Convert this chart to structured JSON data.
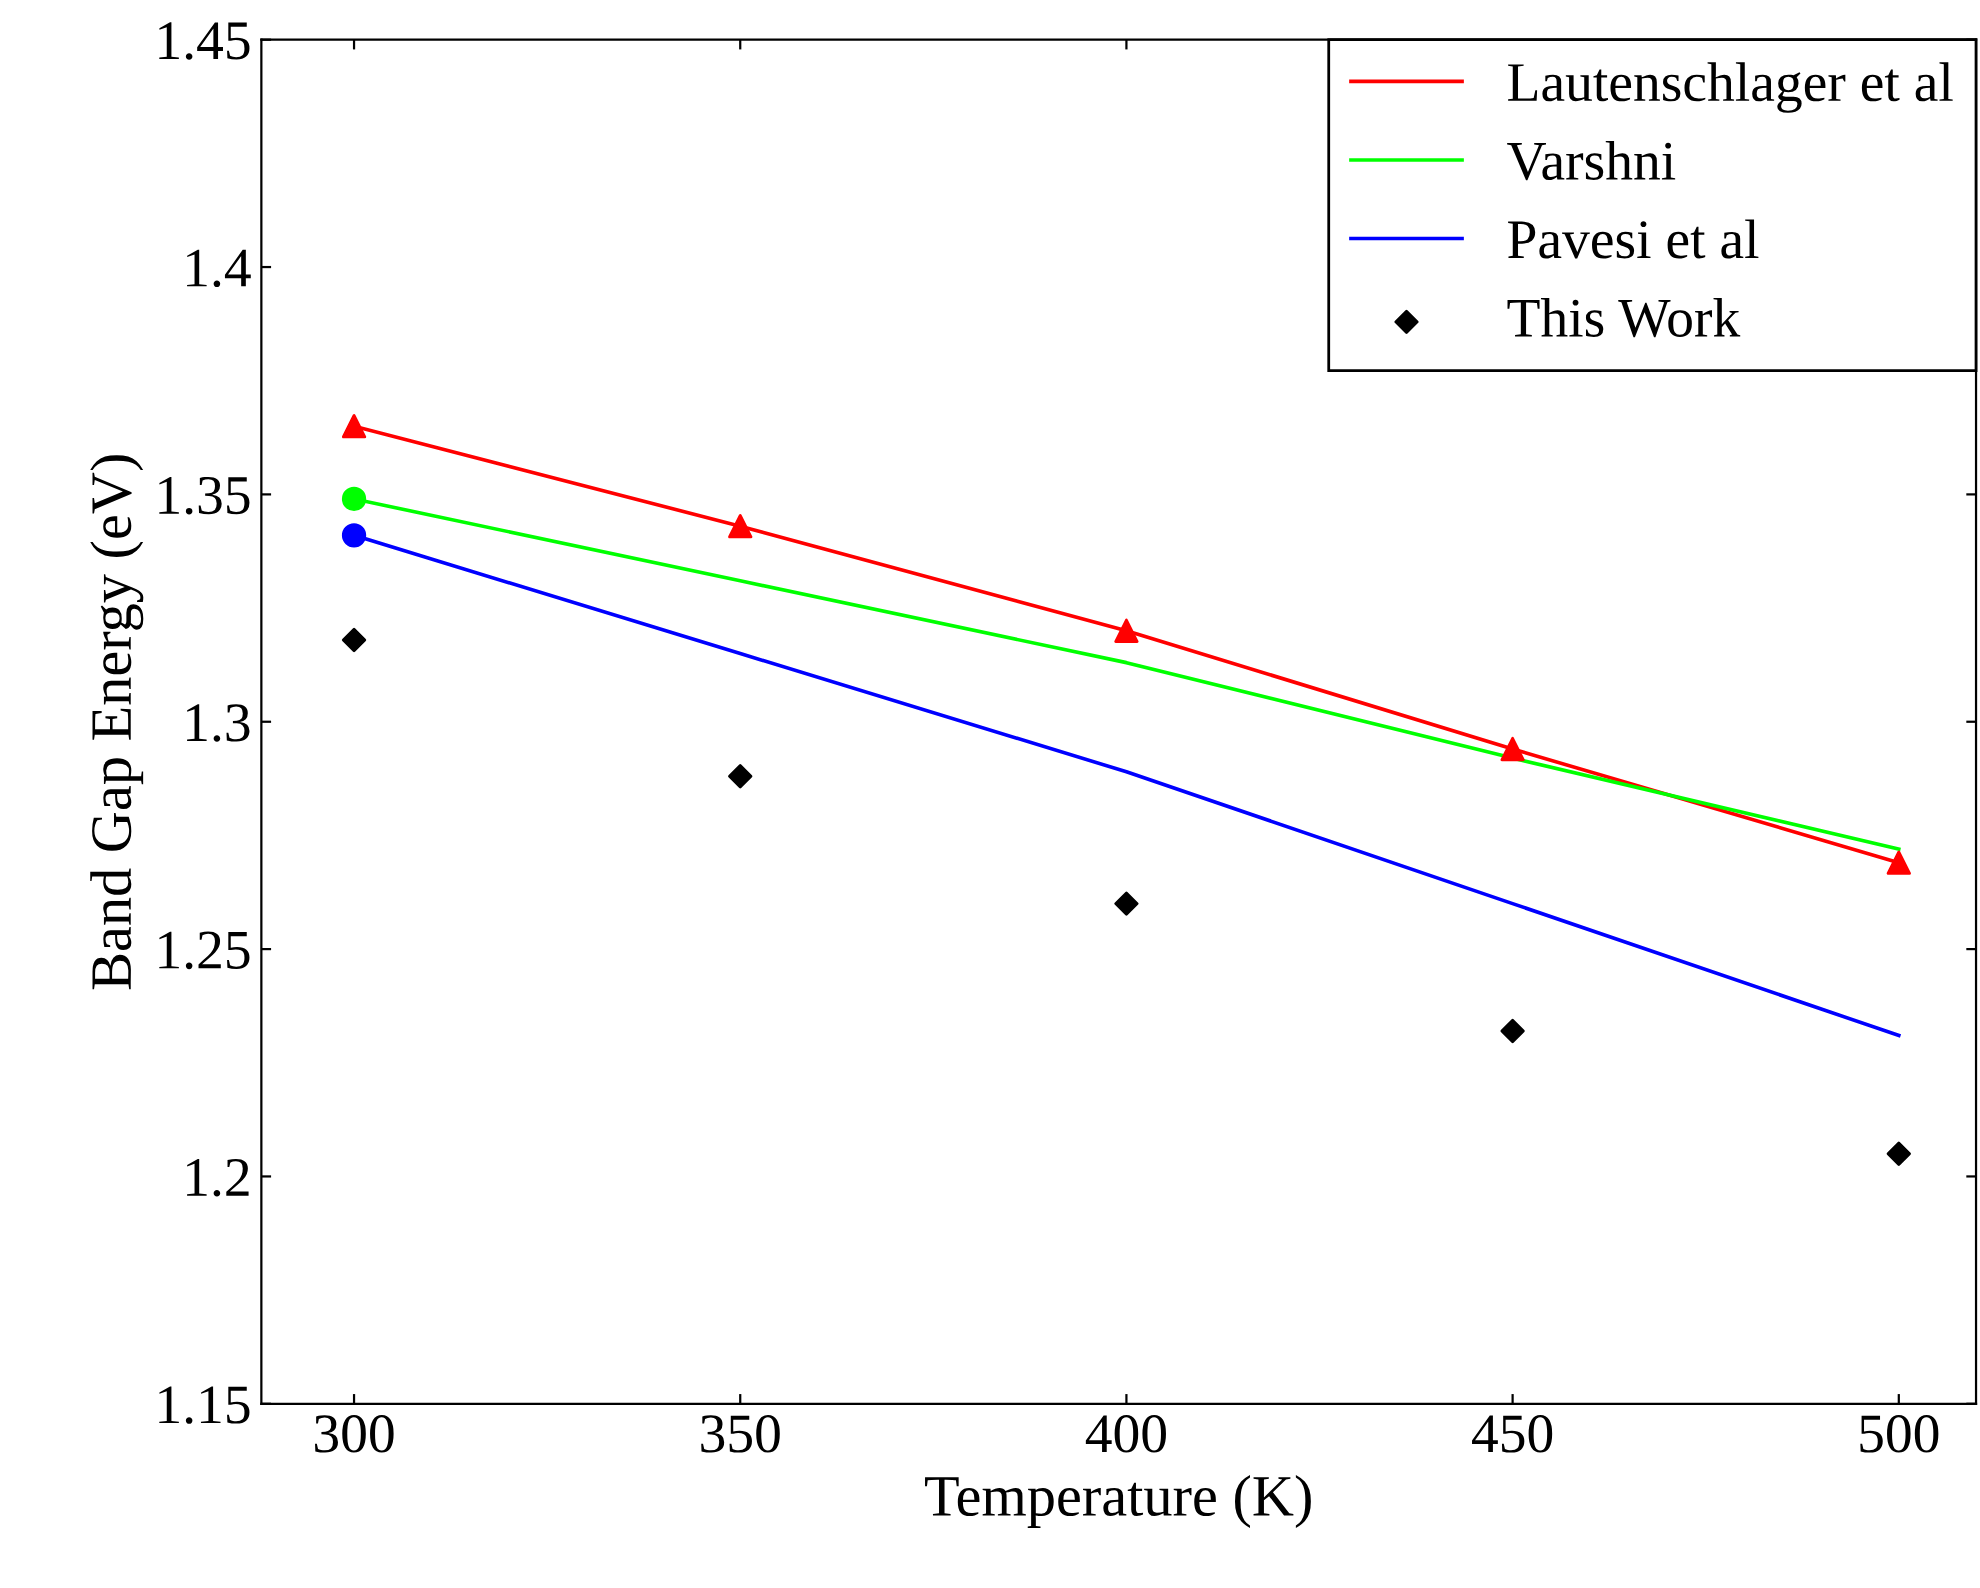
{
  "chart_data": {
    "type": "line",
    "xlabel": "Temperature (K)",
    "ylabel": "Band Gap Energy (eV)",
    "xlim": [
      288,
      510
    ],
    "ylim": [
      1.15,
      1.45
    ],
    "xticks": [
      300,
      350,
      400,
      450,
      500
    ],
    "yticks": [
      1.15,
      1.2,
      1.25,
      1.3,
      1.35,
      1.4,
      1.45
    ],
    "grid": false,
    "legend": "top right",
    "series": [
      {
        "name": "Lautenschlager et al",
        "color": "#ff0000",
        "x": [
          300,
          350,
          400,
          450,
          500
        ],
        "values": [
          1.365,
          1.343,
          1.32,
          1.294,
          1.269
        ]
      },
      {
        "name": "Varshni",
        "color": "#00ff00",
        "x": [
          300,
          350,
          400,
          450,
          500
        ],
        "values": [
          1.349,
          1.331,
          1.313,
          1.292,
          1.272
        ]
      },
      {
        "name": "Pavesi et al",
        "color": "#0000ff",
        "x": [
          300,
          350,
          400,
          450,
          500
        ],
        "values": [
          1.341,
          1.315,
          1.289,
          1.26,
          1.231
        ]
      },
      {
        "name": "This Work",
        "color": "#000000",
        "type": "scatter",
        "marker": "diamond",
        "x": [
          300,
          350,
          400,
          450,
          500
        ],
        "values": [
          1.318,
          1.288,
          1.26,
          1.232,
          1.205
        ]
      },
      {
        "color": "#ff0000",
        "type": "scatter",
        "marker": "triangle",
        "x": [
          300,
          350,
          400,
          450,
          500
        ],
        "values": [
          1.365,
          1.343,
          1.32,
          1.294,
          1.269
        ]
      },
      {
        "color": "#00ff00",
        "type": "scatter",
        "marker": "circle",
        "x": [
          300
        ],
        "values": [
          1.349
        ]
      },
      {
        "color": "#0000ff",
        "type": "scatter",
        "marker": "circle",
        "x": [
          300
        ],
        "values": [
          1.341
        ]
      }
    ]
  }
}
